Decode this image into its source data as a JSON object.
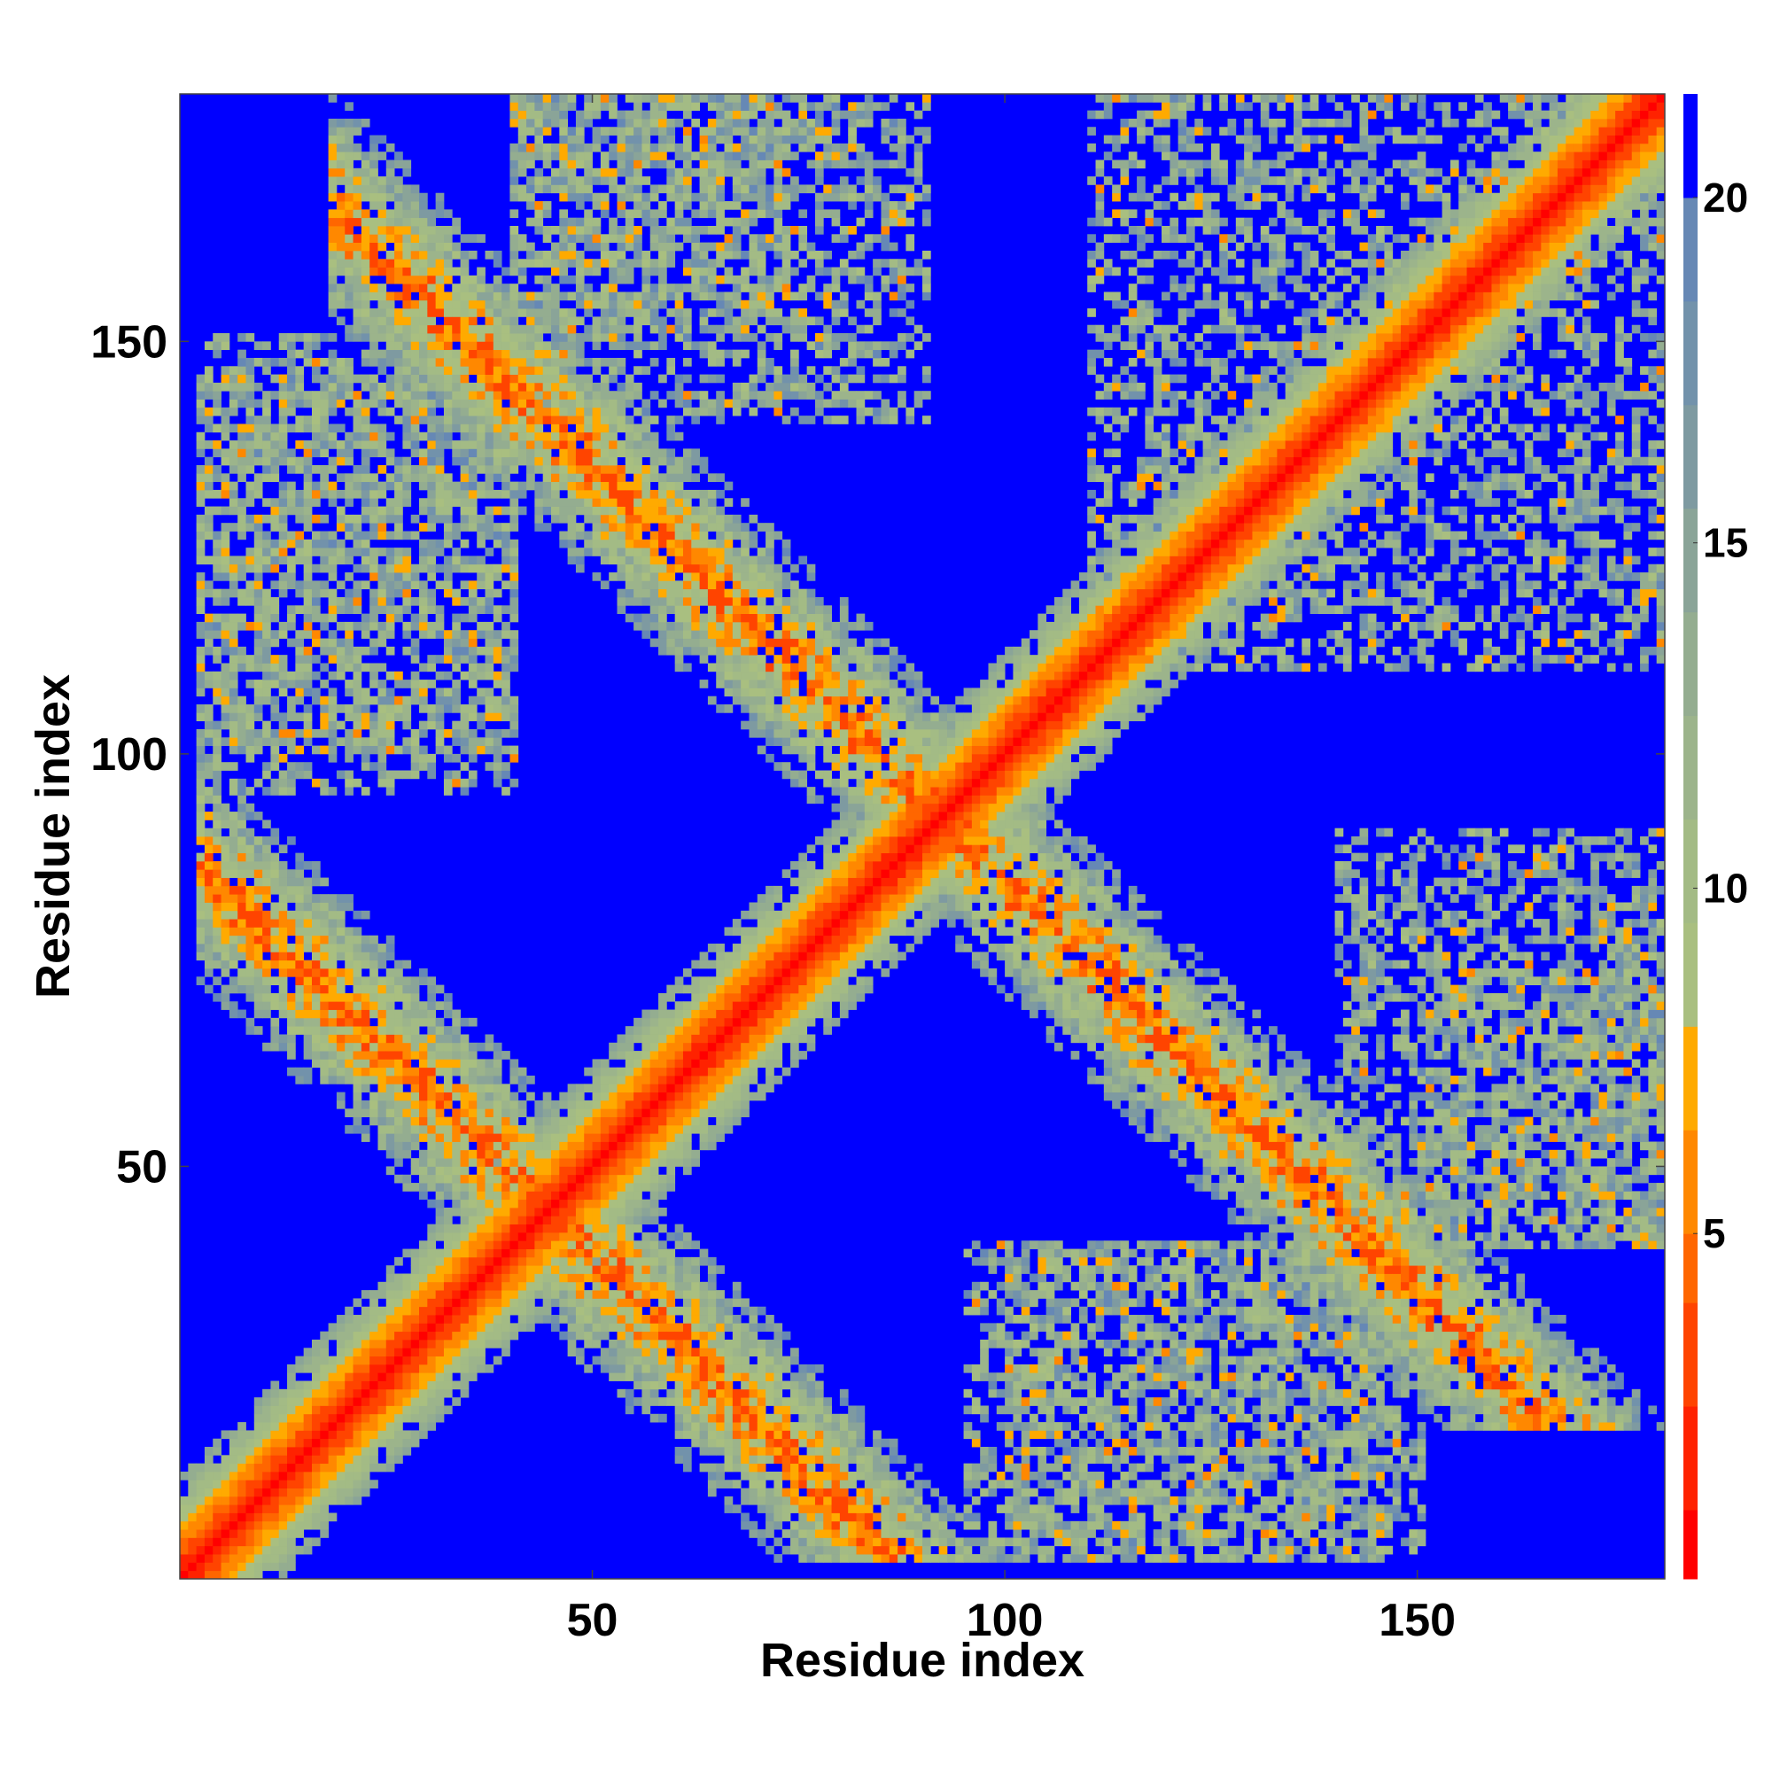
{
  "chart_data": {
    "type": "heatmap",
    "title": "",
    "xlabel": "Residue index",
    "ylabel": "Residue index",
    "residue_count": 180,
    "xlim": [
      0,
      180
    ],
    "ylim": [
      0,
      180
    ],
    "x_ticks": [
      50,
      100,
      150
    ],
    "y_ticks": [
      50,
      100,
      150
    ],
    "x_tick_labels": [
      "50",
      "100",
      "150"
    ],
    "y_tick_labels": [
      "50",
      "100",
      "150"
    ],
    "colorbar": {
      "range": [
        0,
        21.5
      ],
      "ticks": [
        5,
        10,
        15,
        20
      ],
      "tick_labels": [
        "5",
        "10",
        "15",
        "20"
      ],
      "levels": [
        {
          "min": 0,
          "max": 1,
          "color": "#ff0000"
        },
        {
          "min": 1,
          "max": 2.5,
          "color": "#ff2200"
        },
        {
          "min": 2.5,
          "max": 4,
          "color": "#ff4400"
        },
        {
          "min": 4,
          "max": 5,
          "color": "#ff6600"
        },
        {
          "min": 5,
          "max": 6.5,
          "color": "#ff8800"
        },
        {
          "min": 6.5,
          "max": 8,
          "color": "#ffaa00"
        },
        {
          "min": 8,
          "max": 9.5,
          "color": "#a9bf80"
        },
        {
          "min": 9.5,
          "max": 11,
          "color": "#a3bb85"
        },
        {
          "min": 11,
          "max": 12.5,
          "color": "#9cb48b"
        },
        {
          "min": 12.5,
          "max": 14,
          "color": "#94ad90"
        },
        {
          "min": 14,
          "max": 15.5,
          "color": "#8aa498"
        },
        {
          "min": 15.5,
          "max": 17,
          "color": "#7e9aa1"
        },
        {
          "min": 17,
          "max": 18.5,
          "color": "#7292ab"
        },
        {
          "min": 18.5,
          "max": 20,
          "color": "#6688b5"
        },
        {
          "min": 20,
          "max": 21.5,
          "color": "#0000ff"
        }
      ]
    },
    "structure": {
      "main_diagonal": "i = j",
      "antidiagonal_bands": [
        {
          "sum": 88,
          "from": 2,
          "to": 86
        },
        {
          "sum": 184,
          "from": 18,
          "to": 162
        }
      ],
      "contact_patches": [
        {
          "i": [
            110,
            180
          ],
          "j": [
            110,
            180
          ]
        },
        {
          "i": [
            2,
            40
          ],
          "j": [
            95,
            145
          ]
        },
        {
          "i": [
            40,
            90
          ],
          "j": [
            140,
            180
          ]
        },
        {
          "i": [
            100,
            150
          ],
          "j": [
            2,
            40
          ]
        },
        {
          "i": [
            150,
            180
          ],
          "j": [
            40,
            75
          ]
        }
      ],
      "far_distance_nm": 21.5
    }
  }
}
